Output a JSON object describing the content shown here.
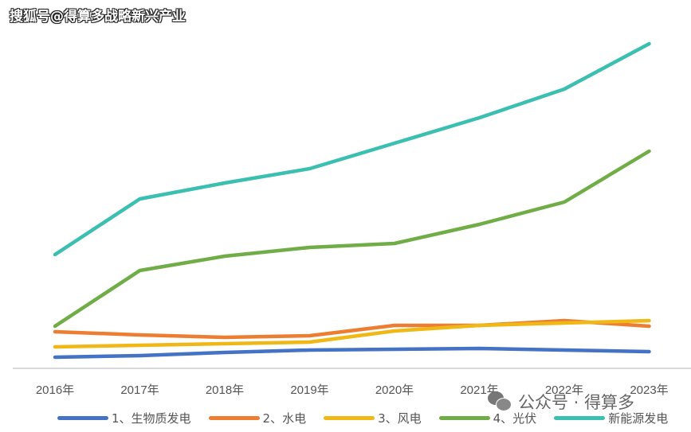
{
  "watermark_top": "搜狐号@得算多战略新兴产业",
  "watermark_bottom": "公众号 · 得算多",
  "chart_data": {
    "type": "line",
    "title": "",
    "xlabel": "",
    "ylabel": "",
    "categories": [
      "2016年",
      "2017年",
      "2018年",
      "2019年",
      "2020年",
      "2021年",
      "2022年",
      "2023年"
    ],
    "ylim": [
      0,
      420
    ],
    "grid": false,
    "legend_position": "bottom",
    "series": [
      {
        "name": "1、生物质发电",
        "color": "#4472C4",
        "values": [
          14,
          16,
          20,
          23,
          24,
          25,
          23,
          21
        ]
      },
      {
        "name": "2、水电",
        "color": "#ED7D31",
        "values": [
          46,
          42,
          39,
          41,
          54,
          54,
          60,
          53
        ]
      },
      {
        "name": "3、风电",
        "color": "#F0B817",
        "values": [
          27,
          29,
          31,
          33,
          47,
          54,
          57,
          60
        ]
      },
      {
        "name": "4、光伏",
        "color": "#70AD47",
        "values": [
          53,
          123,
          141,
          152,
          157,
          181,
          209,
          273
        ]
      },
      {
        "name": "新能源发电",
        "color": "#3BBFB0",
        "values": [
          143,
          213,
          233,
          251,
          283,
          315,
          351,
          408
        ]
      }
    ]
  }
}
